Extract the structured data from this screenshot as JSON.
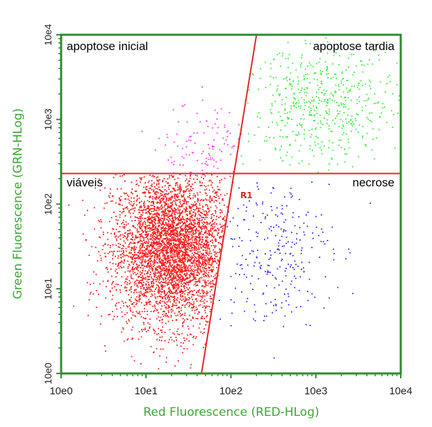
{
  "chart_data": {
    "type": "scatter",
    "xlabel": "Red Fluorescence (RED-HLog)",
    "ylabel": "Green Fluorescence (GRN-HLog)",
    "x_scale": "log",
    "y_scale": "log",
    "xlim": [
      1,
      10000
    ],
    "ylim": [
      1,
      10000
    ],
    "x_ticks": [
      "10e0",
      "10e1",
      "10e2",
      "10e3",
      "10e4"
    ],
    "y_ticks": [
      "10e0",
      "10e1",
      "10e2",
      "10e3",
      "10e4"
    ],
    "grid": false,
    "frame_color": "#2e8b2e",
    "axis_title_color": "#3aa832",
    "quadrants": {
      "top_left": "apoptose inicial",
      "top_right": "apoptose tardia",
      "bottom_left": "viáveis",
      "bottom_right": "necrose"
    },
    "gate_label": "R1",
    "horizontal_gate_y": 230,
    "diagonal_gate": {
      "start": [
        45,
        1
      ],
      "end": [
        200,
        10000
      ]
    },
    "gate_color": "#e32525",
    "series": [
      {
        "color": "#ff1a1a",
        "region": "viáveis",
        "center": [
          20,
          30
        ],
        "spread_decades": [
          0.35,
          0.45
        ],
        "approx_count": 4200
      },
      {
        "color": "#ff33ff",
        "region": "apoptose inicial",
        "center": [
          50,
          400
        ],
        "spread_decades": [
          0.25,
          0.3
        ],
        "approx_count": 110
      },
      {
        "color": "#33ee33",
        "region": "apoptose tardia",
        "center": [
          1200,
          1500
        ],
        "spread_decades": [
          0.45,
          0.35
        ],
        "approx_count": 520
      },
      {
        "color": "#2a2aff",
        "region": "necrose",
        "center": [
          300,
          30
        ],
        "spread_decades": [
          0.35,
          0.45
        ],
        "approx_count": 270
      }
    ]
  }
}
